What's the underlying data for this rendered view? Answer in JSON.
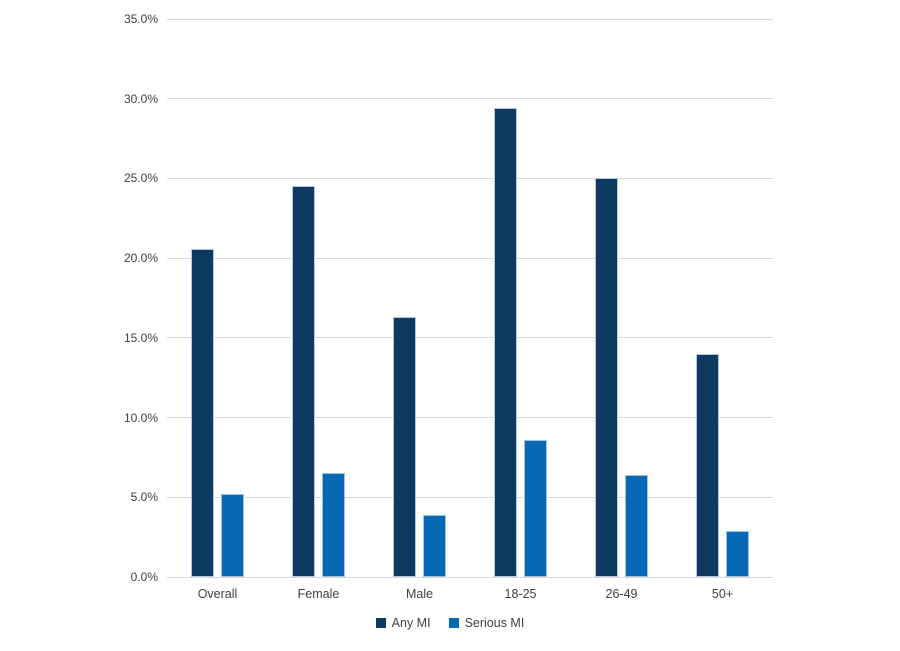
{
  "chart_data": {
    "type": "bar",
    "title": "",
    "xlabel": "",
    "ylabel": "",
    "categories": [
      "Overall",
      "Female",
      "Male",
      "18-25",
      "26-49",
      "50+"
    ],
    "series": [
      {
        "name": "Any MI",
        "color": "#0e3a62",
        "values": [
          20.6,
          24.5,
          16.3,
          29.4,
          25.0,
          14.0
        ]
      },
      {
        "name": "Serious MI",
        "color": "#0667b2",
        "values": [
          5.2,
          6.5,
          3.9,
          8.6,
          6.4,
          2.9
        ]
      }
    ],
    "ylim": [
      0,
      35
    ],
    "ytick_labels": [
      "0.0%",
      "5.0%",
      "10.0%",
      "15.0%",
      "20.0%",
      "25.0%",
      "30.0%",
      "35.0%"
    ],
    "ytick_values": [
      0,
      5,
      10,
      15,
      20,
      25,
      30,
      35
    ],
    "grid": true,
    "legend_position": "bottom",
    "gridline_color": "#d9d9d9",
    "axis_label_color": "#404040",
    "background_color": "#ffffff"
  }
}
